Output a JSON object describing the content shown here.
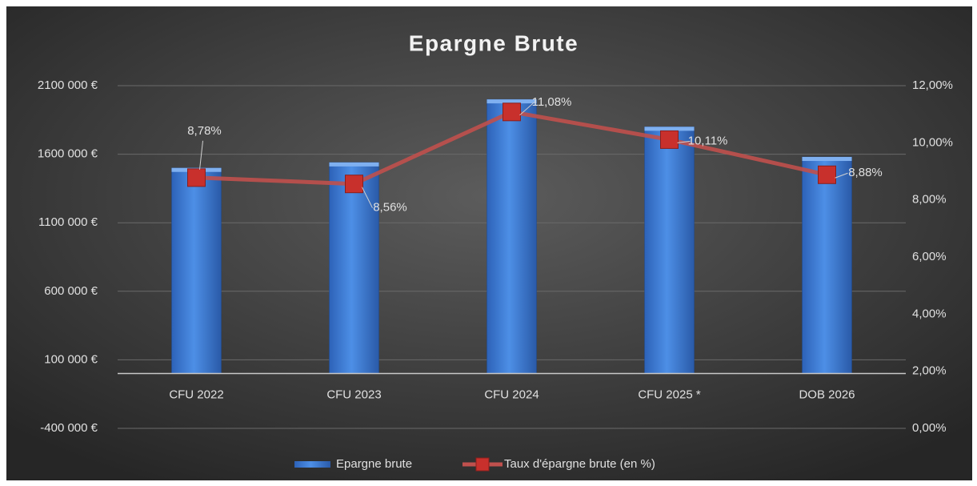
{
  "chart_data": {
    "type": "combo",
    "title": "Epargne Brute",
    "categories": [
      "CFU 2022",
      "CFU 2023",
      "CFU 2024",
      "CFU 2025 *",
      "DOB 2026"
    ],
    "series": [
      {
        "name": "Epargne brute",
        "type": "bar",
        "color": "#3f7bd0",
        "values": [
          1500000,
          1540000,
          2000000,
          1800000,
          1580000
        ]
      },
      {
        "name": "Taux d'épargne brute (en %)",
        "type": "line",
        "axis": "y2",
        "color": "#c0504d",
        "values": [
          8.78,
          8.56,
          11.08,
          10.11,
          8.88
        ],
        "value_labels": [
          "8,78%",
          "8,56%",
          "11,08%",
          "10,11%",
          "8,88%"
        ]
      }
    ],
    "ylim": [
      -400000,
      2100000
    ],
    "yticks": [
      {
        "value": -400000,
        "label": "-400 000 €"
      },
      {
        "value": 100000,
        "label": "100 000 €"
      },
      {
        "value": 600000,
        "label": "600 000 €"
      },
      {
        "value": 1100000,
        "label": "1100 000 €"
      },
      {
        "value": 1600000,
        "label": "1600 000 €"
      },
      {
        "value": 2100000,
        "label": "2100 000 €"
      }
    ],
    "y2lim": [
      0,
      12
    ],
    "y2ticks": [
      {
        "value": 0,
        "label": "0,00%"
      },
      {
        "value": 2,
        "label": "2,00%"
      },
      {
        "value": 4,
        "label": "4,00%"
      },
      {
        "value": 6,
        "label": "6,00%"
      },
      {
        "value": 8,
        "label": "8,00%"
      },
      {
        "value": 10,
        "label": "10,00%"
      },
      {
        "value": 12,
        "label": "12,00%"
      }
    ],
    "grid": true,
    "legend": "bottom"
  }
}
